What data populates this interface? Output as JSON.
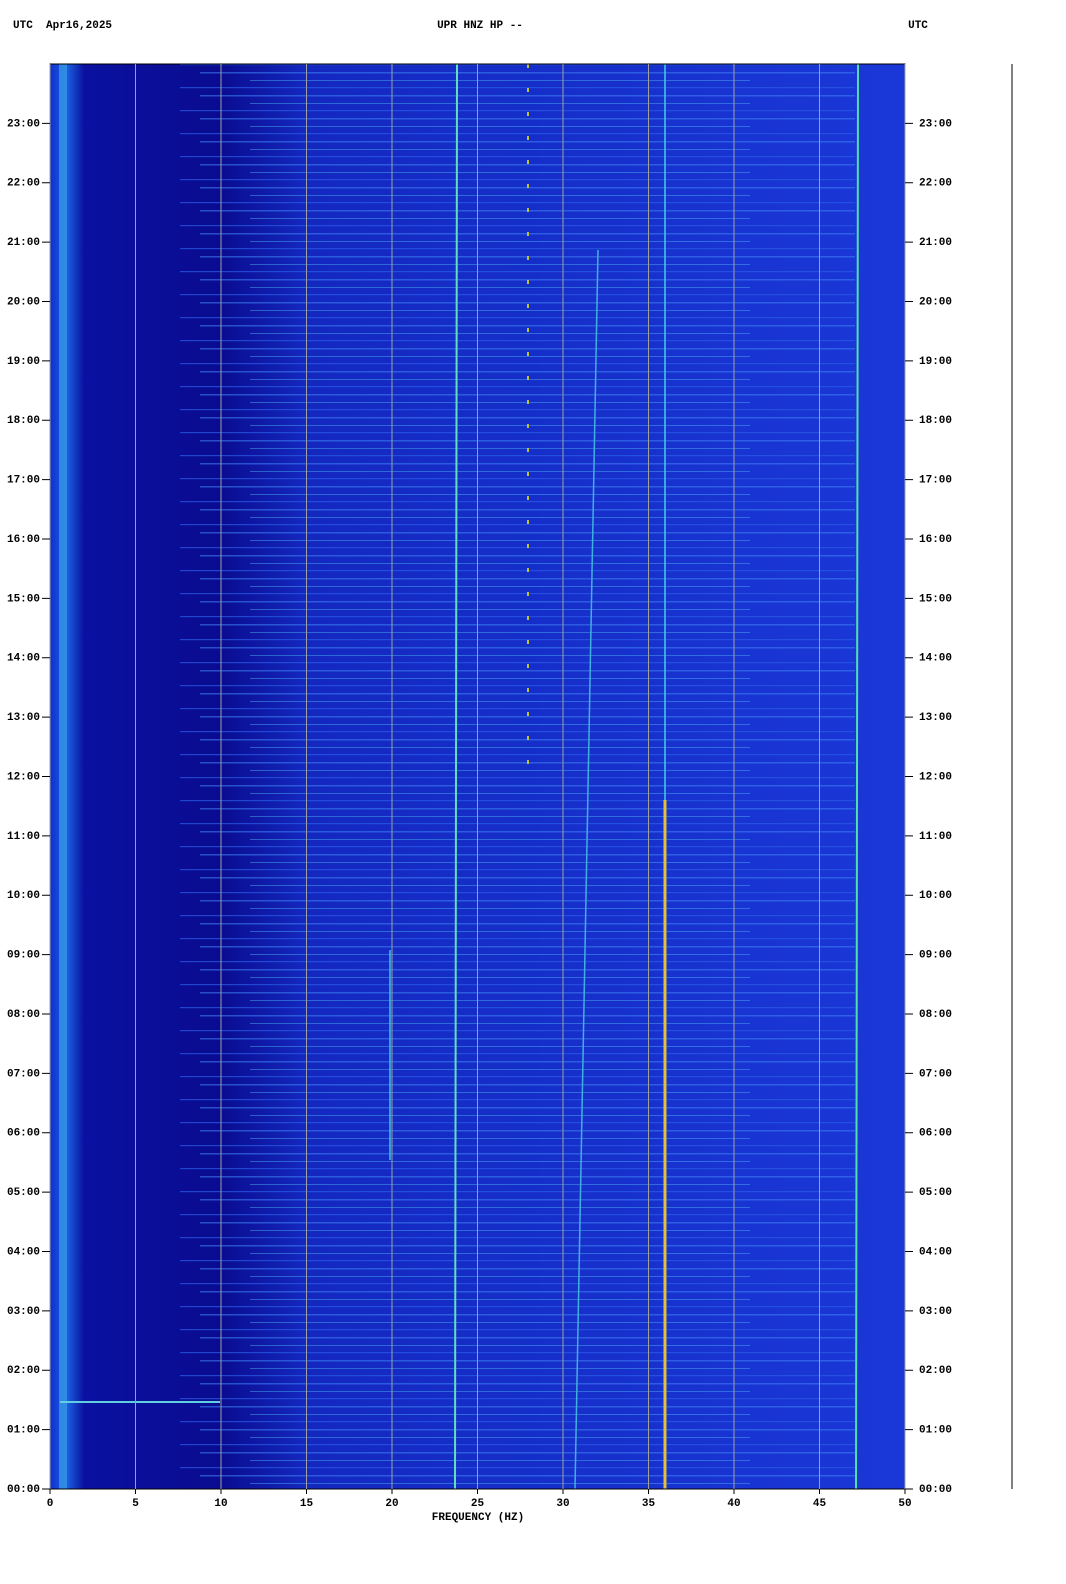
{
  "chart_data": {
    "type": "spectrogram",
    "title_left": "UTC  Apr16,2025",
    "title": "UPR HNZ HP --",
    "title_right": "UTC",
    "xlabel": "FREQUENCY (HZ)",
    "xlim": [
      0,
      50
    ],
    "xticks": [
      0,
      5,
      10,
      15,
      20,
      25,
      30,
      35,
      40,
      45,
      50
    ],
    "ylim": [
      0,
      24
    ],
    "yticks": [
      {
        "value": 0,
        "label": "00:00"
      },
      {
        "value": 1,
        "label": "01:00"
      },
      {
        "value": 2,
        "label": "02:00"
      },
      {
        "value": 3,
        "label": "03:00"
      },
      {
        "value": 4,
        "label": "04:00"
      },
      {
        "value": 5,
        "label": "05:00"
      },
      {
        "value": 6,
        "label": "06:00"
      },
      {
        "value": 7,
        "label": "07:00"
      },
      {
        "value": 8,
        "label": "08:00"
      },
      {
        "value": 9,
        "label": "09:00"
      },
      {
        "value": 10,
        "label": "10:00"
      },
      {
        "value": 11,
        "label": "11:00"
      },
      {
        "value": 12,
        "label": "12:00"
      },
      {
        "value": 13,
        "label": "13:00"
      },
      {
        "value": 14,
        "label": "14:00"
      },
      {
        "value": 15,
        "label": "15:00"
      },
      {
        "value": 16,
        "label": "16:00"
      },
      {
        "value": 17,
        "label": "17:00"
      },
      {
        "value": 18,
        "label": "18:00"
      },
      {
        "value": 19,
        "label": "19:00"
      },
      {
        "value": 20,
        "label": "20:00"
      },
      {
        "value": 21,
        "label": "21:00"
      },
      {
        "value": 22,
        "label": "22:00"
      },
      {
        "value": 23,
        "label": "23:00"
      }
    ],
    "grid": true
  }
}
